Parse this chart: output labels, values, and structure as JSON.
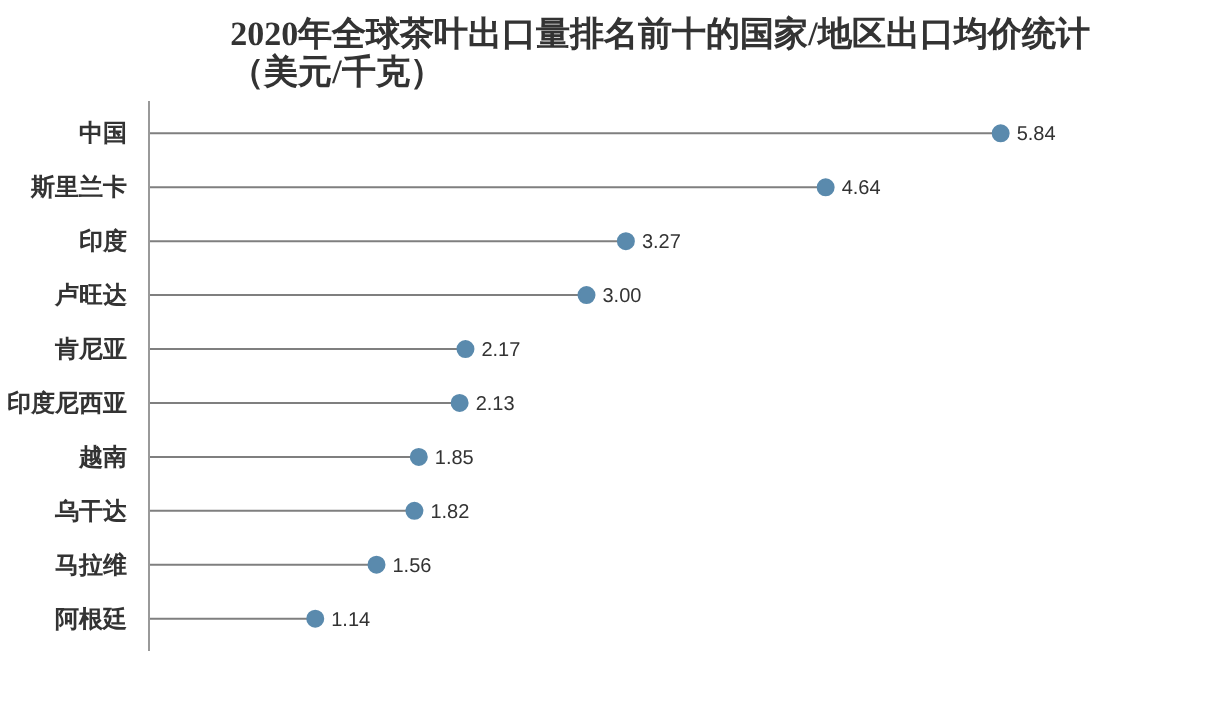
{
  "chart_data": {
    "type": "lollipop",
    "orientation": "horizontal",
    "title": "2020年全球茶叶出口量排名前十的国家/地区出口均价统计（美元/千克）",
    "categories": [
      "中国",
      "斯里兰卡",
      "印度",
      "卢旺达",
      "肯尼亚",
      "印度尼西亚",
      "越南",
      "乌干达",
      "马拉维",
      "阿根廷"
    ],
    "values": [
      5.84,
      4.64,
      3.27,
      3.0,
      2.17,
      2.13,
      1.85,
      1.82,
      1.56,
      1.14
    ],
    "value_labels": [
      "5.84",
      "4.64",
      "3.27",
      "3.00",
      "2.17",
      "2.13",
      "1.85",
      "1.82",
      "1.56",
      "1.14"
    ],
    "color": "#5a8aad",
    "marker": "circle",
    "tick_labels": "y"
  }
}
